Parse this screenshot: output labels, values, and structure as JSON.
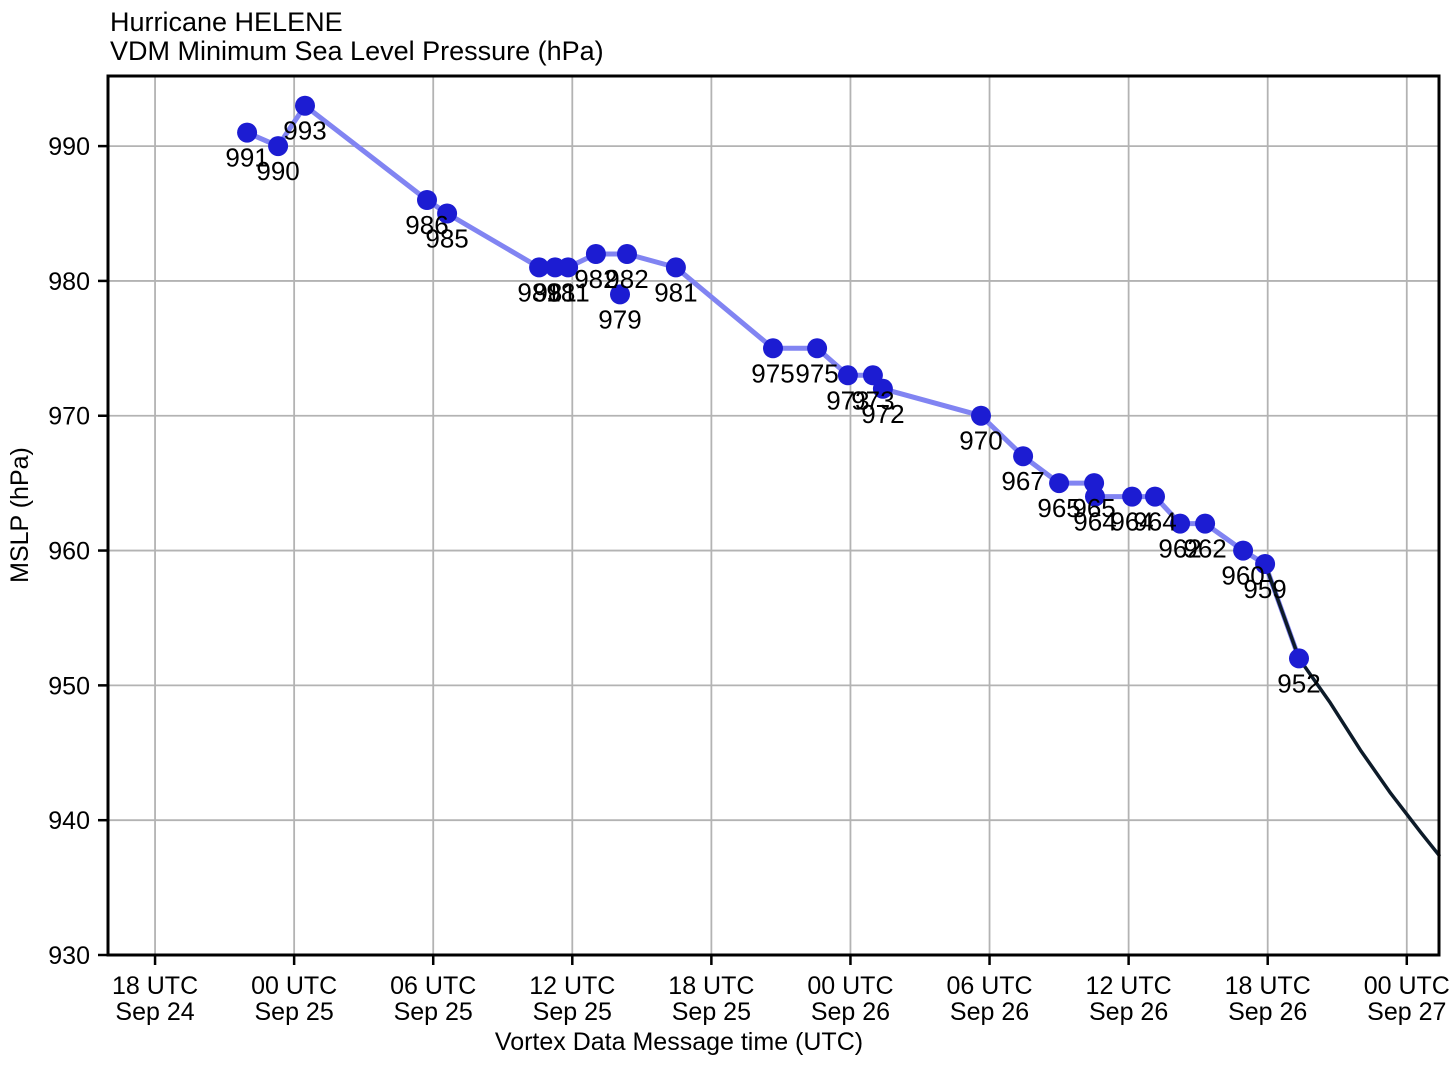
{
  "chart_data": {
    "type": "line",
    "title": "Hurricane HELENE",
    "subtitle": "VDM Minimum Sea Level Pressure (hPa)",
    "xlabel": "Vortex Data Message time (UTC)",
    "ylabel": "MSLP (hPa)",
    "layout": {
      "grid": true,
      "legend": false,
      "xlim_hours_from_18utc_sep24": [
        -2.03,
        55.39
      ],
      "ylim": [
        930,
        995.2
      ]
    },
    "x_ticks": [
      {
        "hours": 0,
        "line1": "18 UTC",
        "line2": "Sep 24"
      },
      {
        "hours": 6,
        "line1": "00 UTC",
        "line2": "Sep 25"
      },
      {
        "hours": 12,
        "line1": "06 UTC",
        "line2": "Sep 25"
      },
      {
        "hours": 18,
        "line1": "12 UTC",
        "line2": "Sep 25"
      },
      {
        "hours": 24,
        "line1": "18 UTC",
        "line2": "Sep 25"
      },
      {
        "hours": 30,
        "line1": "00 UTC",
        "line2": "Sep 26"
      },
      {
        "hours": 36,
        "line1": "06 UTC",
        "line2": "Sep 26"
      },
      {
        "hours": 42,
        "line1": "12 UTC",
        "line2": "Sep 26"
      },
      {
        "hours": 48,
        "line1": "18 UTC",
        "line2": "Sep 26"
      },
      {
        "hours": 54,
        "line1": "00 UTC",
        "line2": "Sep 27"
      }
    ],
    "y_ticks": [
      990,
      980,
      970,
      960,
      950,
      940,
      930
    ],
    "series": [
      {
        "name": "VDM minimum sea level pressure reports",
        "kind": "line+markers+labels",
        "marker_color": "#1c1cd2",
        "line_color": "#8184f2",
        "points": [
          {
            "hours": 3.97,
            "mslp": 991
          },
          {
            "hours": 5.31,
            "mslp": 990
          },
          {
            "hours": 6.47,
            "mslp": 993
          },
          {
            "hours": 11.73,
            "mslp": 986
          },
          {
            "hours": 12.6,
            "mslp": 985
          },
          {
            "hours": 16.57,
            "mslp": 981
          },
          {
            "hours": 17.26,
            "mslp": 981
          },
          {
            "hours": 17.82,
            "mslp": 981
          },
          {
            "hours": 19.02,
            "mslp": 982
          },
          {
            "hours": 20.06,
            "mslp": 979,
            "on_line": false
          },
          {
            "hours": 20.36,
            "mslp": 982
          },
          {
            "hours": 22.47,
            "mslp": 981
          },
          {
            "hours": 26.66,
            "mslp": 975
          },
          {
            "hours": 28.56,
            "mslp": 975
          },
          {
            "hours": 29.89,
            "mslp": 973
          },
          {
            "hours": 30.97,
            "mslp": 973
          },
          {
            "hours": 31.4,
            "mslp": 972
          },
          {
            "hours": 35.63,
            "mslp": 970
          },
          {
            "hours": 37.45,
            "mslp": 967
          },
          {
            "hours": 39.0,
            "mslp": 965
          },
          {
            "hours": 40.51,
            "mslp": 965
          },
          {
            "hours": 40.55,
            "mslp": 964
          },
          {
            "hours": 42.15,
            "mslp": 964
          },
          {
            "hours": 43.14,
            "mslp": 964
          },
          {
            "hours": 44.22,
            "mslp": 962
          },
          {
            "hours": 45.3,
            "mslp": 962
          },
          {
            "hours": 46.94,
            "mslp": 960
          },
          {
            "hours": 47.89,
            "mslp": 959
          },
          {
            "hours": 49.35,
            "mslp": 952
          }
        ]
      },
      {
        "name": "trend line",
        "kind": "line",
        "line_color": "#0d1b29",
        "points": [
          {
            "hours": 47.89,
            "mslp": 959
          },
          {
            "hours": 49.35,
            "mslp": 952
          },
          {
            "hours": 50.7,
            "mslp": 948.7
          },
          {
            "hours": 52.0,
            "mslp": 945.2
          },
          {
            "hours": 53.3,
            "mslp": 942.0
          },
          {
            "hours": 54.6,
            "mslp": 939.1
          },
          {
            "hours": 55.39,
            "mslp": 937.4
          }
        ]
      }
    ]
  },
  "colors": {
    "background": "#ffffff",
    "grid": "#b3b3b3",
    "spine": "#000000",
    "text": "#000000",
    "marker": "#1c1cd2",
    "obs_line": "#8184f2",
    "trend_line": "#0d1b29"
  }
}
